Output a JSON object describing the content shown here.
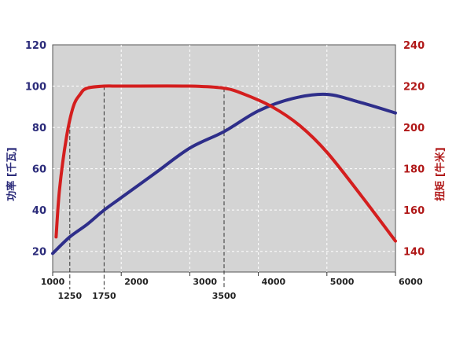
{
  "chart_data": {
    "type": "line",
    "title": "",
    "x": {
      "label": "",
      "range": [
        1000,
        6000
      ],
      "ticks": [
        1000,
        2000,
        3000,
        4000,
        5000,
        6000
      ],
      "tick_labels": [
        "1000",
        "2000",
        "3000",
        "4000",
        "5000",
        "6000"
      ],
      "extra_ticks": [
        1250,
        1750,
        3500
      ],
      "extra_tick_labels": [
        "1250",
        "1750",
        "3500"
      ]
    },
    "y_left": {
      "label": "功率 [千瓦]",
      "range": [
        10,
        120
      ],
      "ticks": [
        20,
        40,
        60,
        80,
        100,
        120
      ],
      "tick_labels": [
        "20",
        "40",
        "60",
        "80",
        "100",
        "120"
      ],
      "color": "#2b2b7a"
    },
    "y_right": {
      "label": "扭矩 [牛米]",
      "range": [
        130,
        240
      ],
      "ticks": [
        140,
        160,
        180,
        200,
        220,
        240
      ],
      "tick_labels": [
        "140",
        "160",
        "180",
        "200",
        "220",
        "240"
      ],
      "color": "#b01818"
    },
    "grid": true,
    "background": "#d4d4d4",
    "series": [
      {
        "axis": "left",
        "color": "#2e2e8a",
        "x": [
          1000,
          1250,
          1500,
          1750,
          2000,
          2500,
          3000,
          3500,
          4000,
          4500,
          5000,
          5500,
          6000
        ],
        "values": [
          19,
          27,
          33,
          40,
          46,
          58,
          70,
          78,
          88,
          94,
          96,
          92,
          87
        ]
      },
      {
        "axis": "right",
        "color": "#d41e1e",
        "x": [
          1050,
          1100,
          1200,
          1300,
          1400,
          1500,
          1750,
          2000,
          3000,
          3500,
          3800,
          4200,
          4600,
          5000,
          5500,
          6000
        ],
        "values": [
          147,
          170,
          195,
          210,
          216,
          219,
          220,
          220,
          220,
          219,
          216,
          210,
          201,
          188,
          167,
          145
        ]
      }
    ]
  }
}
